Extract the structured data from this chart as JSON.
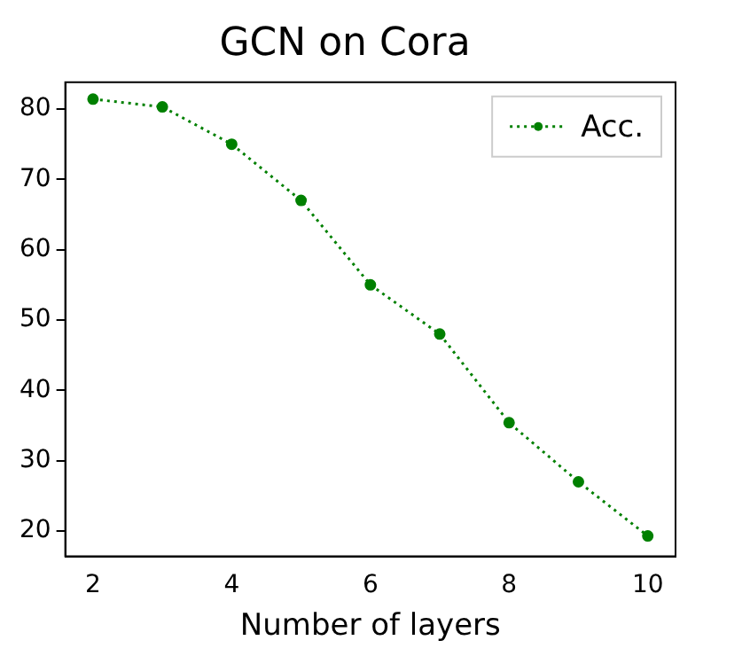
{
  "chart_data": {
    "type": "line",
    "title": "GCN on Cora",
    "xlabel": "Number of layers",
    "x": [
      2,
      3,
      4,
      5,
      6,
      7,
      8,
      9,
      10
    ],
    "series": [
      {
        "name": "Acc.",
        "color": "#008000",
        "values": [
          81.4,
          80.3,
          75,
          67,
          55,
          48,
          35.4,
          27,
          19.3
        ]
      }
    ],
    "xlim": [
      1.6,
      10.4
    ],
    "xticks": [
      2,
      4,
      6,
      8,
      10
    ],
    "ylim": [
      16.4,
      83.8
    ],
    "yticks": [
      20,
      30,
      40,
      50,
      60,
      70,
      80
    ],
    "grid": false,
    "legend": "top right",
    "marker": "circle",
    "line_style": "dotted"
  }
}
